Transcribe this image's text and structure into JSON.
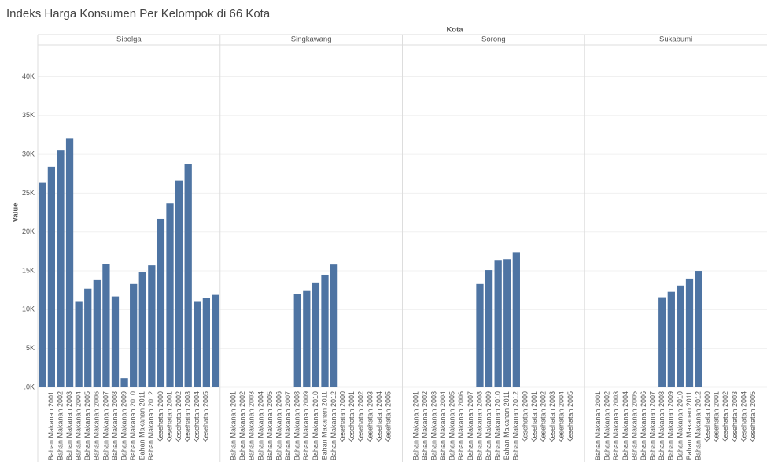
{
  "chart_data": {
    "type": "bar",
    "title": "Indeks Harga Konsumen Per Kelompok di 66 Kota",
    "column_header": "Kota",
    "y_label": "Value",
    "color": "#4e74a3",
    "grid": true,
    "categories": [
      null,
      "Bahan Makanan 2001",
      "Bahan Makanan 2002",
      "Bahan Makanan 2003",
      "Bahan Makanan 2004",
      "Bahan Makanan 2005",
      "Bahan Makanan 2006",
      "Bahan Makanan 2007",
      "Bahan Makanan 2008",
      "Bahan Makanan 2009",
      "Bahan Makanan 2010",
      "Bahan Makanan 2011",
      "Bahan Makanan 2012",
      "Kesehatan 2000",
      "Kesehatan 2001",
      "Kesehatan 2002",
      "Kesehatan 2003",
      "Kesehatan 2004",
      "Kesehatan 2005",
      null
    ],
    "series": [
      {
        "name": "Sibolga",
        "values": [
          26400,
          28400,
          30500,
          32100,
          11000,
          12700,
          13800,
          15900,
          11700,
          1200,
          13300,
          14800,
          15700,
          21700,
          23700,
          26600,
          28700,
          11000,
          11500,
          11900
        ]
      },
      {
        "name": "Singkawang",
        "values": [
          null,
          null,
          null,
          null,
          null,
          null,
          null,
          null,
          12000,
          12400,
          13500,
          14500,
          15800,
          null,
          null,
          null,
          null,
          null,
          null,
          null
        ]
      },
      {
        "name": "Sorong",
        "values": [
          null,
          null,
          null,
          null,
          null,
          null,
          null,
          null,
          13300,
          15100,
          16400,
          16500,
          17400,
          null,
          null,
          null,
          null,
          null,
          null,
          null
        ]
      },
      {
        "name": "Sukabumi",
        "values": [
          null,
          null,
          null,
          null,
          null,
          null,
          null,
          null,
          11600,
          12300,
          13100,
          14000,
          15000,
          null,
          null,
          null,
          null,
          null,
          null,
          null
        ]
      }
    ],
    "ylim": [
      0,
      44000
    ],
    "yticks": [
      {
        "value": 0,
        "label": ".0K"
      },
      {
        "value": 5000,
        "label": "5K"
      },
      {
        "value": 10000,
        "label": "10K"
      },
      {
        "value": 15000,
        "label": "15K"
      },
      {
        "value": 20000,
        "label": "20K"
      },
      {
        "value": 25000,
        "label": "25K"
      },
      {
        "value": 30000,
        "label": "30K"
      },
      {
        "value": 35000,
        "label": "35K"
      },
      {
        "value": 40000,
        "label": "40K"
      }
    ]
  }
}
